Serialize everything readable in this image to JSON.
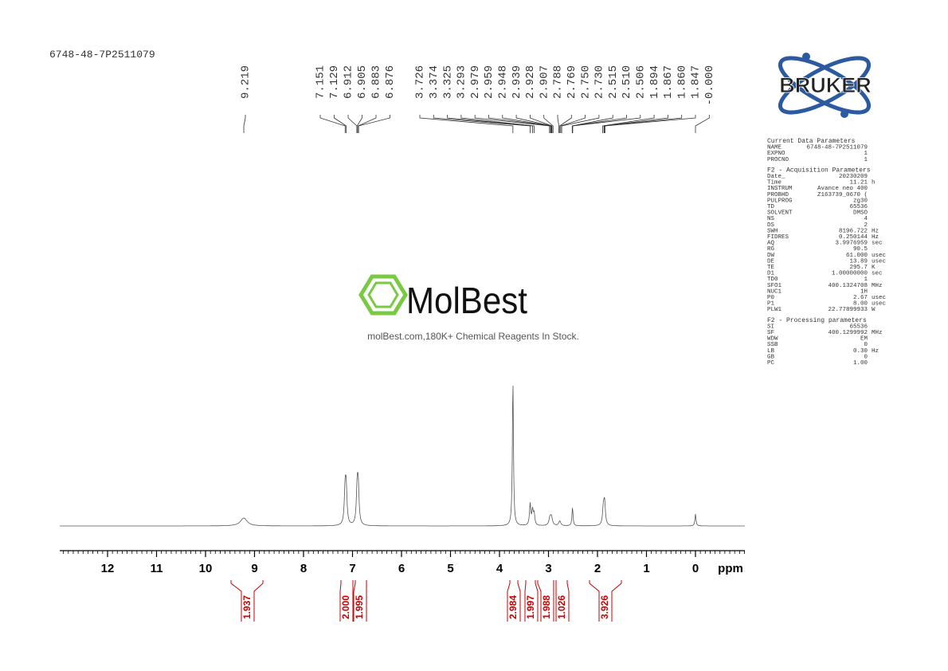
{
  "sample_id": "6748-48-7P2511079",
  "peak_labels": [
    "9.219",
    "7.151",
    "7.129",
    "6.912",
    "6.905",
    "6.883",
    "6.876",
    "3.726",
    "3.374",
    "3.325",
    "3.293",
    "2.979",
    "2.959",
    "2.948",
    "2.939",
    "2.928",
    "2.907",
    "2.788",
    "2.769",
    "2.750",
    "2.730",
    "2.515",
    "2.510",
    "2.506",
    "1.894",
    "1.867",
    "1.860",
    "1.847",
    "-0.000"
  ],
  "x_axis": {
    "ticks": [
      12,
      11,
      10,
      9,
      8,
      7,
      6,
      5,
      4,
      3,
      2,
      1,
      0
    ],
    "unit": "ppm"
  },
  "integrals": [
    "1.937",
    "2.000",
    "1.995",
    "2.984",
    "1.997",
    "1.988",
    "1.026",
    "3.926"
  ],
  "logo": "BRUKER",
  "watermark": {
    "name": "MolBest",
    "tagline": "molBest.com,180K+ Chemical Reagents In Stock."
  },
  "parameters": [
    {
      "title": "Current Data Parameters",
      "rows": [
        [
          "NAME",
          "6748-48-7P2511079"
        ],
        [
          "EXPNO",
          "1"
        ],
        [
          "PROCNO",
          "1"
        ]
      ]
    },
    {
      "title": "F2 - Acquisition Parameters",
      "rows": [
        [
          "Date_",
          "20230209"
        ],
        [
          "Time",
          "11.21",
          "h"
        ],
        [
          "INSTRUM",
          "Avance neo 400"
        ],
        [
          "PROBHD",
          "Z163739_0670 ("
        ],
        [
          "PULPROG",
          "zg30"
        ],
        [
          "TD",
          "65536"
        ],
        [
          "SOLVENT",
          "DMSO"
        ],
        [
          "NS",
          "4"
        ],
        [
          "DS",
          "2"
        ],
        [
          "SWH",
          "8196.722",
          "Hz"
        ],
        [
          "FIDRES",
          "0.250144",
          "Hz"
        ],
        [
          "AQ",
          "3.9976959",
          "sec"
        ],
        [
          "RG",
          "90.5"
        ],
        [
          "DW",
          "61.000",
          "usec"
        ],
        [
          "DE",
          "13.89",
          "usec"
        ],
        [
          "TE",
          "295.7",
          "K"
        ],
        [
          "D1",
          "1.00000000",
          "sec"
        ],
        [
          "TD0",
          "1"
        ],
        [
          "SFO1",
          "400.1324708",
          "MHz"
        ],
        [
          "NUC1",
          "1H"
        ],
        [
          "P0",
          "2.67",
          "usec"
        ],
        [
          "P1",
          "8.00",
          "usec"
        ],
        [
          "PLW1",
          "22.77899933",
          "W"
        ]
      ]
    },
    {
      "title": "F2 - Processing parameters",
      "rows": [
        [
          "SI",
          "65536"
        ],
        [
          "SF",
          "400.1299992",
          "MHz"
        ],
        [
          "WDW",
          "EM"
        ],
        [
          "SSB",
          "0"
        ],
        [
          "LB",
          "0.30",
          "Hz"
        ],
        [
          "GB",
          "0"
        ],
        [
          "PC",
          "1.00"
        ]
      ]
    }
  ]
}
